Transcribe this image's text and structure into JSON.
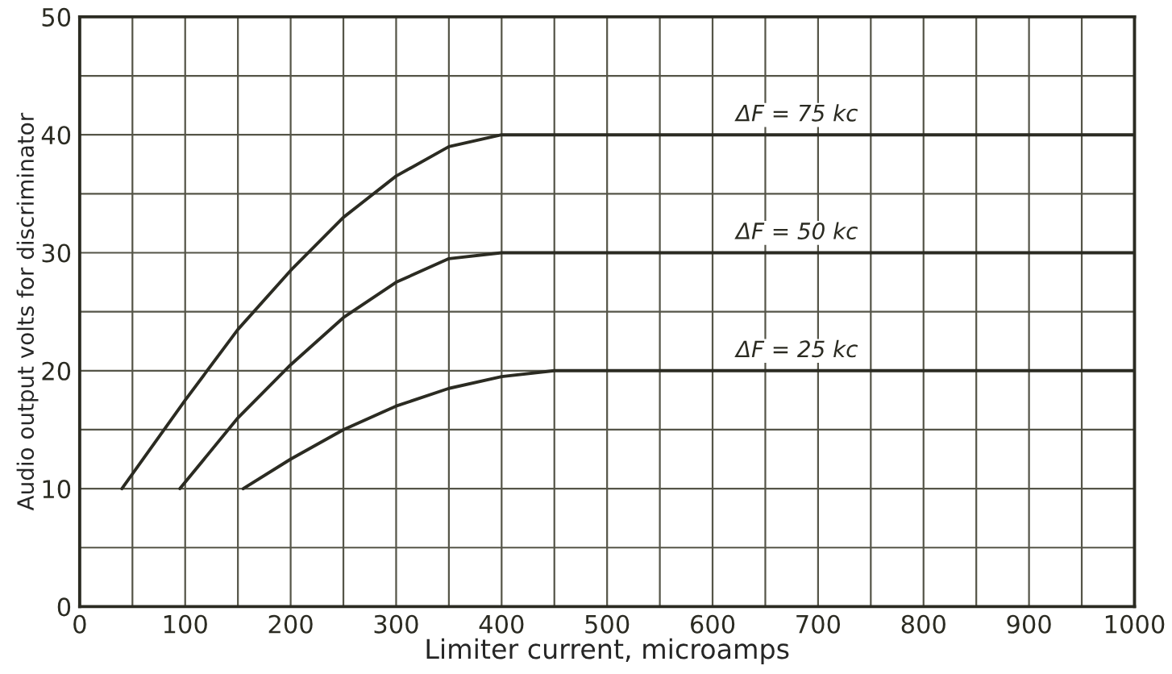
{
  "chart_data": {
    "type": "line",
    "xlabel": "Limiter current, microamps",
    "ylabel": "Audio output volts for discriminator",
    "series": [
      {
        "name": "ΔF = 75 kc",
        "x": [
          40,
          100,
          150,
          200,
          250,
          300,
          350,
          400,
          1000
        ],
        "values": [
          10,
          17.5,
          23.5,
          28.5,
          33,
          36.5,
          39,
          40,
          40
        ],
        "color": "#2b2b22"
      },
      {
        "name": "ΔF = 50 kc",
        "x": [
          95,
          150,
          200,
          250,
          300,
          350,
          400,
          1000
        ],
        "values": [
          10,
          16,
          20.5,
          24.5,
          27.5,
          29.5,
          30,
          30
        ],
        "color": "#2b2b22"
      },
      {
        "name": "ΔF = 25 kc",
        "x": [
          155,
          200,
          250,
          300,
          350,
          400,
          450,
          1000
        ],
        "values": [
          10,
          12.5,
          15,
          17,
          18.5,
          19.5,
          20,
          20
        ],
        "color": "#2b2b22"
      }
    ],
    "xlim": [
      0,
      1000
    ],
    "ylim": [
      0,
      50
    ],
    "xticks": [
      0,
      {
        "value": 50,
        "label": null
      },
      100,
      {
        "value": 150,
        "label": null
      },
      200,
      {
        "value": 250,
        "label": null
      },
      300,
      {
        "value": 350,
        "label": null
      },
      400,
      {
        "value": 450,
        "label": null
      },
      500,
      {
        "value": 550,
        "label": null
      },
      600,
      {
        "value": 650,
        "label": null
      },
      700,
      {
        "value": 750,
        "label": null
      },
      800,
      {
        "value": 850,
        "label": null
      },
      900,
      {
        "value": 950,
        "label": null
      },
      1000
    ],
    "yticks": [
      0,
      {
        "value": 5,
        "label": null
      },
      10,
      {
        "value": 15,
        "label": null
      },
      20,
      {
        "value": 25,
        "label": null
      },
      30,
      {
        "value": 35,
        "label": null
      },
      40,
      {
        "value": 45,
        "label": null
      },
      50
    ],
    "grid": true,
    "marker": "none",
    "line_style": "solid"
  }
}
